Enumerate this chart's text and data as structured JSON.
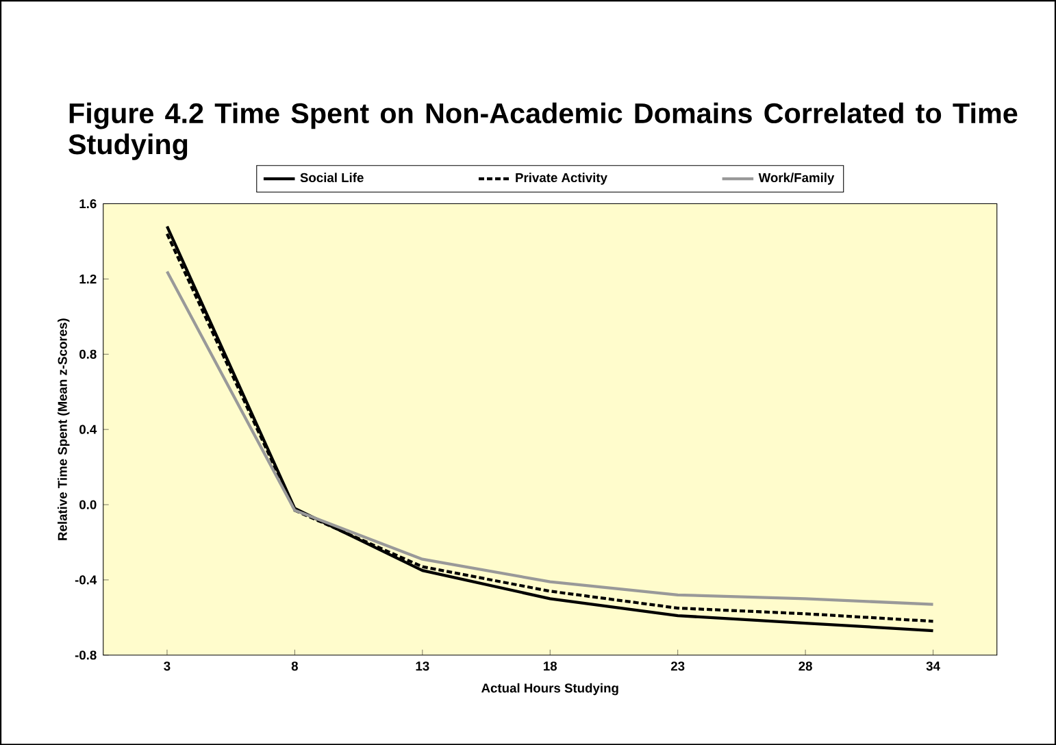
{
  "chart_data": {
    "type": "line",
    "title": "Figure 4.2 Time Spent on Non-Academic Domains Correlated to Time Studying",
    "xlabel": "Actual Hours Studying",
    "ylabel": "Relative Time Spent (Mean z-Scores)",
    "categories": [
      "3",
      "8",
      "13",
      "18",
      "23",
      "28",
      "34"
    ],
    "series": [
      {
        "name": "Social Life",
        "color": "#000000",
        "line_style": "solid",
        "values": [
          1.48,
          -0.02,
          -0.35,
          -0.5,
          -0.59,
          -0.63,
          -0.67
        ]
      },
      {
        "name": "Private Activity",
        "color": "#000000",
        "line_style": "dashed",
        "values": [
          1.44,
          -0.03,
          -0.33,
          -0.46,
          -0.55,
          -0.58,
          -0.62
        ]
      },
      {
        "name": "Work/Family",
        "color": "#999999",
        "line_style": "solid",
        "values": [
          1.24,
          -0.03,
          -0.29,
          -0.41,
          -0.48,
          -0.5,
          -0.53
        ]
      }
    ],
    "ylim": [
      -0.8,
      1.6
    ],
    "yticks": [
      {
        "value": -0.8,
        "label": "-0.8"
      },
      {
        "value": -0.4,
        "label": "-0.4"
      },
      {
        "value": 0,
        "label": "0.0"
      },
      {
        "value": 0.4,
        "label": "0.4"
      },
      {
        "value": 0.8,
        "label": "0.8"
      },
      {
        "value": 1.2,
        "label": "1.2"
      },
      {
        "value": 1.6,
        "label": "1.6"
      }
    ],
    "legend": "top",
    "grid": false,
    "marker": "none"
  }
}
